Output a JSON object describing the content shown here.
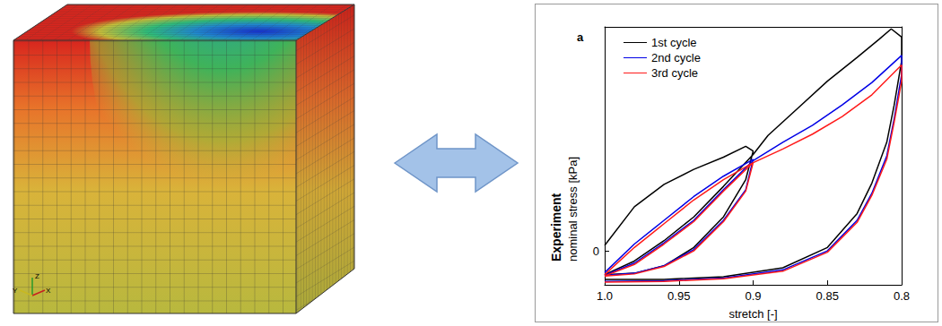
{
  "chart_data": {
    "type": "line",
    "title": "a",
    "xlabel": "stretch [-]",
    "ylabel": [
      "Experiment",
      "nominal stress [kPa]"
    ],
    "xlim": [
      1.0,
      0.8
    ],
    "xticks": [
      {
        "value": 1.0,
        "label": "1.0"
      },
      0.95,
      0.9,
      0.85,
      0.8
    ],
    "ylim": [
      -0.5,
      3.3
    ],
    "yticks": [
      0
    ],
    "legend": "upper left",
    "grid": false,
    "series": [
      {
        "name": "1st cycle",
        "color": "#000000",
        "x": [
          1.0,
          0.98,
          0.96,
          0.94,
          0.92,
          0.905,
          0.9,
          0.905,
          0.92,
          0.94,
          0.96,
          0.98,
          1.0,
          0.98,
          0.96,
          0.94,
          0.92,
          0.9,
          0.89,
          0.87,
          0.85,
          0.83,
          0.815,
          0.807,
          0.8,
          0.8,
          0.805,
          0.81,
          0.82,
          0.83,
          0.85,
          0.88,
          0.92,
          0.96,
          1.0
        ],
        "values": [
          0.08,
          0.65,
          0.98,
          1.2,
          1.38,
          1.54,
          1.47,
          1.05,
          0.5,
          0.05,
          -0.22,
          -0.33,
          -0.35,
          -0.15,
          0.15,
          0.5,
          0.95,
          1.42,
          1.7,
          2.1,
          2.5,
          2.85,
          3.12,
          3.27,
          3.15,
          2.8,
          2.15,
          1.6,
          1.0,
          0.55,
          0.05,
          -0.25,
          -0.38,
          -0.42,
          -0.42
        ]
      },
      {
        "name": "2nd cycle",
        "color": "#0000e6",
        "x": [
          1.0,
          0.98,
          0.96,
          0.94,
          0.92,
          0.9,
          0.905,
          0.92,
          0.94,
          0.96,
          0.98,
          1.0,
          0.98,
          0.96,
          0.94,
          0.92,
          0.9,
          0.88,
          0.86,
          0.84,
          0.82,
          0.8,
          0.8,
          0.805,
          0.81,
          0.82,
          0.83,
          0.85,
          0.88,
          0.92,
          0.96,
          1.0
        ],
        "values": [
          -0.32,
          0.1,
          0.45,
          0.8,
          1.1,
          1.35,
          0.9,
          0.45,
          0.02,
          -0.22,
          -0.33,
          -0.36,
          -0.18,
          0.12,
          0.45,
          0.9,
          1.33,
          1.6,
          1.85,
          2.15,
          2.48,
          2.88,
          2.6,
          1.95,
          1.4,
          0.85,
          0.45,
          0.0,
          -0.28,
          -0.4,
          -0.44,
          -0.45
        ]
      },
      {
        "name": "3rd cycle",
        "color": "#ff1a1a",
        "x": [
          1.0,
          0.98,
          0.96,
          0.94,
          0.92,
          0.9,
          0.905,
          0.92,
          0.94,
          0.96,
          0.98,
          1.0,
          0.98,
          0.96,
          0.94,
          0.92,
          0.9,
          0.88,
          0.86,
          0.84,
          0.82,
          0.8,
          0.8,
          0.805,
          0.81,
          0.82,
          0.83,
          0.85,
          0.88,
          0.92,
          0.96,
          1.0
        ],
        "values": [
          -0.35,
          0.05,
          0.4,
          0.75,
          1.05,
          1.3,
          0.88,
          0.43,
          0.0,
          -0.23,
          -0.34,
          -0.37,
          -0.2,
          0.1,
          0.43,
          0.88,
          1.3,
          1.5,
          1.72,
          1.98,
          2.3,
          2.74,
          2.5,
          1.9,
          1.35,
          0.82,
          0.42,
          -0.02,
          -0.3,
          -0.41,
          -0.45,
          -0.46
        ]
      }
    ]
  },
  "figure": {
    "triad_labels": [
      "Z",
      "Y",
      "X"
    ]
  }
}
